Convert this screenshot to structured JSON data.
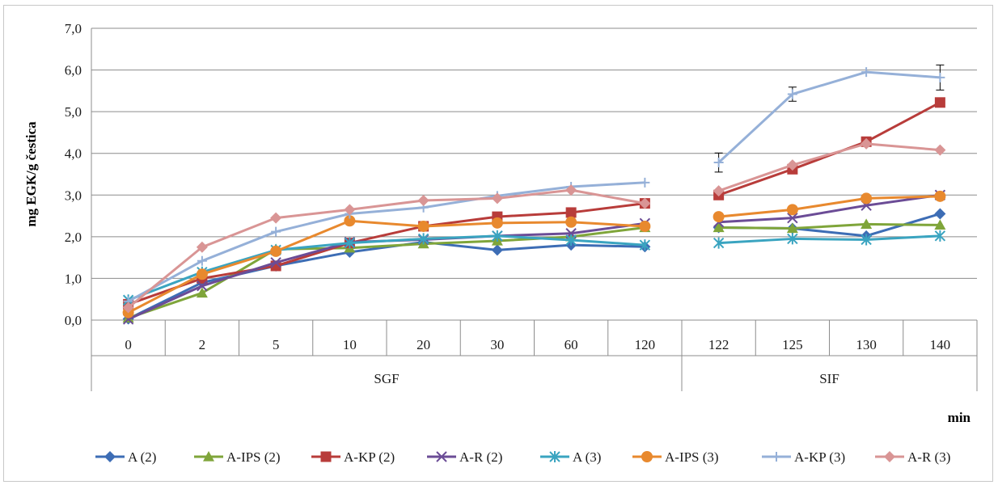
{
  "chart_data": {
    "type": "line",
    "ylabel": "mg EGK/g čestica",
    "xlabel": "min",
    "ylim": [
      0,
      7
    ],
    "y_ticks": [
      "0,0",
      "1,0",
      "2,0",
      "3,0",
      "4,0",
      "5,0",
      "6,0",
      "7,0"
    ],
    "categories": [
      "0",
      "2",
      "5",
      "10",
      "20",
      "30",
      "60",
      "120",
      "122",
      "125",
      "130",
      "140"
    ],
    "groups": [
      {
        "label": "SGF",
        "from": 0,
        "to": 7
      },
      {
        "label": "SIF",
        "from": 8,
        "to": 11
      }
    ],
    "grid": "horizontal",
    "legend_position": "bottom",
    "series": [
      {
        "name": "A (2)",
        "color": "#3d6db5",
        "marker": "diamond",
        "values": [
          0.03,
          0.9,
          1.3,
          1.63,
          1.87,
          1.68,
          1.8,
          1.76,
          2.22,
          2.2,
          2.02,
          2.55
        ]
      },
      {
        "name": "A-IPS (2)",
        "color": "#7fa53a",
        "marker": "triangle",
        "values": [
          0.05,
          0.65,
          1.7,
          1.73,
          1.83,
          1.9,
          2.0,
          2.22,
          2.22,
          2.2,
          2.3,
          2.28
        ]
      },
      {
        "name": "A-KP (2)",
        "color": "#b83c3a",
        "marker": "square",
        "values": [
          0.38,
          1.0,
          1.3,
          1.85,
          2.25,
          2.48,
          2.58,
          2.8,
          3.0,
          3.62,
          4.28,
          5.22
        ]
      },
      {
        "name": "A-R (2)",
        "color": "#6b4c96",
        "marker": "x",
        "values": [
          0.02,
          0.82,
          1.38,
          1.87,
          1.93,
          2.02,
          2.08,
          2.32,
          2.35,
          2.45,
          2.75,
          3.0
        ]
      },
      {
        "name": "A (3)",
        "color": "#3aa4c0",
        "marker": "asterisk",
        "values": [
          0.48,
          1.15,
          1.68,
          1.85,
          1.95,
          2.02,
          1.92,
          1.8,
          1.85,
          1.95,
          1.93,
          2.02
        ]
      },
      {
        "name": "A-IPS (3)",
        "color": "#e8892e",
        "marker": "circle",
        "values": [
          0.18,
          1.1,
          1.65,
          2.38,
          2.25,
          2.33,
          2.35,
          2.25,
          2.48,
          2.65,
          2.92,
          2.97
        ]
      },
      {
        "name": "A-KP (3)",
        "color": "#95b0d8",
        "marker": "plus",
        "values": [
          0.45,
          1.42,
          2.12,
          2.55,
          2.7,
          2.98,
          3.2,
          3.3,
          3.78,
          5.42,
          5.95,
          5.82
        ],
        "error": [
          0,
          0,
          0,
          0,
          0,
          0,
          0,
          0,
          0.23,
          0.17,
          0,
          0.3
        ]
      },
      {
        "name": "A-R (3)",
        "color": "#d99595",
        "marker": "diamond",
        "values": [
          0.3,
          1.75,
          2.45,
          2.65,
          2.87,
          2.92,
          3.12,
          2.8,
          3.1,
          3.72,
          4.23,
          4.08
        ]
      }
    ]
  }
}
